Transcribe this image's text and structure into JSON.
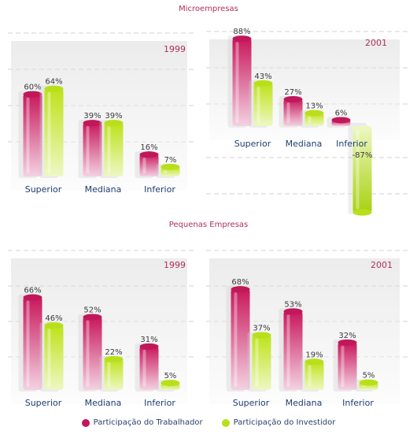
{
  "section_titles": [
    "Microempresas",
    "Pequenas Empresas"
  ],
  "colors": {
    "trabalhador": "#c0185a",
    "investidor": "#b8e01a",
    "value_label": "#3a3a3a",
    "category_label": "#1e3f70",
    "year_label": "#b0305a"
  },
  "legend": [
    {
      "label": "Participação do Trabalhador",
      "color": "#c0185a"
    },
    {
      "label": "Participação do Investidor",
      "color": "#b8e01a"
    }
  ],
  "chart_data": [
    {
      "type": "bar",
      "title": "Microempresas",
      "subtitle": "1999",
      "categories": [
        "Superior",
        "Mediana",
        "Inferior"
      ],
      "series": [
        {
          "name": "Participação do Trabalhador",
          "values": [
            60,
            39,
            16
          ]
        },
        {
          "name": "Participação do Investidor",
          "values": [
            64,
            39,
            7
          ]
        }
      ],
      "value_suffix": "%"
    },
    {
      "type": "bar",
      "title": "Microempresas",
      "subtitle": "2001",
      "categories": [
        "Superior",
        "Mediana",
        "Inferior"
      ],
      "series": [
        {
          "name": "Participação do Trabalhador",
          "values": [
            88,
            27,
            6
          ]
        },
        {
          "name": "Participação do Investidor",
          "values": [
            43,
            13,
            -87
          ]
        }
      ],
      "value_suffix": "%"
    },
    {
      "type": "bar",
      "title": "Pequenas Empresas",
      "subtitle": "1999",
      "categories": [
        "Superior",
        "Mediana",
        "Inferior"
      ],
      "series": [
        {
          "name": "Participação do Trabalhador",
          "values": [
            66,
            52,
            31
          ]
        },
        {
          "name": "Participação do Investidor",
          "values": [
            46,
            22,
            5
          ]
        }
      ],
      "value_suffix": "%"
    },
    {
      "type": "bar",
      "title": "Pequenas Empresas",
      "subtitle": "2001",
      "categories": [
        "Superior",
        "Mediana",
        "Inferior"
      ],
      "series": [
        {
          "name": "Participação do Trabalhador",
          "values": [
            68,
            53,
            32
          ]
        },
        {
          "name": "Participação do Investidor",
          "values": [
            37,
            19,
            5
          ]
        }
      ],
      "value_suffix": "%"
    }
  ]
}
